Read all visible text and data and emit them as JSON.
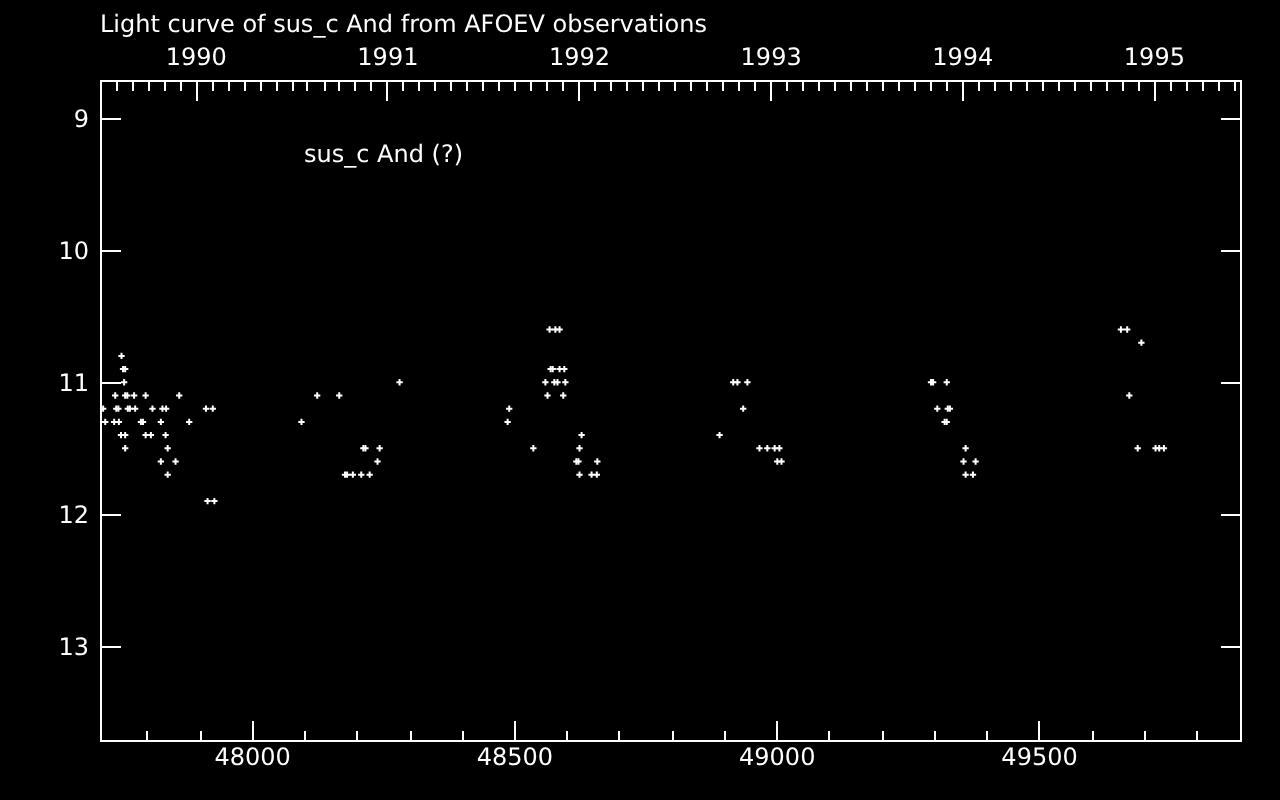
{
  "chart_data": {
    "type": "scatter",
    "title": "Light curve of sus_c And from AFOEV observations",
    "annotations": [
      "sus_c And (?)"
    ],
    "x": [
      47752,
      47755,
      47759,
      47757,
      47740,
      47759,
      47763,
      47776,
      47798,
      47862,
      47717,
      47742,
      47746,
      47764,
      47768,
      47778,
      47811,
      47830,
      47837,
      47913,
      47926,
      47721,
      47738,
      47747,
      47789,
      47793,
      47827,
      47881,
      47751,
      47759,
      47798,
      47808,
      47836,
      47759,
      47840,
      47827,
      47855,
      47840,
      47916,
      47929,
      48095,
      48125,
      48167,
      48282,
      48213,
      48217,
      48244,
      48240,
      48178,
      48182,
      48193,
      48209,
      48225,
      48568,
      48579,
      48587,
      48570,
      48574,
      48587,
      48596,
      48560,
      48577,
      48583,
      48598,
      48564,
      48594,
      48491,
      48488,
      48629,
      48537,
      48625,
      48619,
      48623,
      48659,
      48625,
      48648,
      48658,
      48918,
      48926,
      48945,
      48937,
      48892,
      48968,
      48983,
      48997,
      49006,
      49002,
      49010,
      49295,
      49299,
      49325,
      49307,
      49327,
      49331,
      49321,
      49325,
      49361,
      49357,
      49380,
      49361,
      49375,
      49657,
      49669,
      49696,
      49673,
      49689,
      49723,
      49730,
      49739
    ],
    "series": [
      {
        "color": "#ffffff",
        "values": [
          10.8,
          10.9,
          10.9,
          11.0,
          11.1,
          11.1,
          11.1,
          11.1,
          11.1,
          11.1,
          11.2,
          11.2,
          11.2,
          11.2,
          11.2,
          11.2,
          11.2,
          11.2,
          11.2,
          11.2,
          11.2,
          11.3,
          11.3,
          11.3,
          11.3,
          11.3,
          11.3,
          11.3,
          11.4,
          11.4,
          11.4,
          11.4,
          11.4,
          11.5,
          11.5,
          11.6,
          11.6,
          11.7,
          11.9,
          11.9,
          11.3,
          11.1,
          11.1,
          11.0,
          11.5,
          11.5,
          11.5,
          11.6,
          11.7,
          11.7,
          11.7,
          11.7,
          11.7,
          10.6,
          10.6,
          10.6,
          10.9,
          10.9,
          10.9,
          10.9,
          11.0,
          11.0,
          11.0,
          11.0,
          11.1,
          11.1,
          11.2,
          11.3,
          11.4,
          11.5,
          11.5,
          11.6,
          11.6,
          11.6,
          11.7,
          11.7,
          11.7,
          11.0,
          11.0,
          11.0,
          11.2,
          11.4,
          11.5,
          11.5,
          11.5,
          11.5,
          11.6,
          11.6,
          11.0,
          11.0,
          11.0,
          11.2,
          11.2,
          11.2,
          11.3,
          11.3,
          11.5,
          11.6,
          11.6,
          11.7,
          11.7,
          10.6,
          10.6,
          10.7,
          11.1,
          11.5,
          11.5,
          11.5,
          11.5
        ]
      }
    ],
    "marker": "cross",
    "xlim": [
      47711,
      49884
    ],
    "ylim": [
      13.71,
      8.71
    ],
    "xticks": [
      {
        "value": 47800,
        "label": null
      },
      {
        "value": 47900,
        "label": null
      },
      48000,
      {
        "value": 48100,
        "label": null
      },
      {
        "value": 48200,
        "label": null
      },
      {
        "value": 48300,
        "label": null
      },
      {
        "value": 48400,
        "label": null
      },
      48500,
      {
        "value": 48600,
        "label": null
      },
      {
        "value": 48700,
        "label": null
      },
      {
        "value": 48800,
        "label": null
      },
      {
        "value": 48900,
        "label": null
      },
      49000,
      {
        "value": 49100,
        "label": null
      },
      {
        "value": 49200,
        "label": null
      },
      {
        "value": 49300,
        "label": null
      },
      {
        "value": 49400,
        "label": null
      },
      49500,
      {
        "value": 49600,
        "label": null
      },
      {
        "value": 49700,
        "label": null
      },
      {
        "value": 49800,
        "label": null
      }
    ],
    "yticks": [
      9,
      10,
      11,
      12,
      13
    ],
    "x2lim": [
      1989.503,
      1995.452
    ],
    "x2ticks": [
      {
        "value": 1989.583,
        "label": null
      },
      {
        "value": 1989.667,
        "label": null
      },
      {
        "value": 1989.75,
        "label": null
      },
      {
        "value": 1989.833,
        "label": null
      },
      {
        "value": 1989.917,
        "label": null
      },
      1990,
      {
        "value": 1990.083,
        "label": null
      },
      {
        "value": 1990.167,
        "label": null
      },
      {
        "value": 1990.25,
        "label": null
      },
      {
        "value": 1990.333,
        "label": null
      },
      {
        "value": 1990.417,
        "label": null
      },
      {
        "value": 1990.5,
        "label": null
      },
      {
        "value": 1990.583,
        "label": null
      },
      {
        "value": 1990.667,
        "label": null
      },
      {
        "value": 1990.75,
        "label": null
      },
      {
        "value": 1990.833,
        "label": null
      },
      {
        "value": 1990.917,
        "label": null
      },
      1991,
      {
        "value": 1991.083,
        "label": null
      },
      {
        "value": 1991.167,
        "label": null
      },
      {
        "value": 1991.25,
        "label": null
      },
      {
        "value": 1991.333,
        "label": null
      },
      {
        "value": 1991.417,
        "label": null
      },
      {
        "value": 1991.5,
        "label": null
      },
      {
        "value": 1991.583,
        "label": null
      },
      {
        "value": 1991.667,
        "label": null
      },
      {
        "value": 1991.75,
        "label": null
      },
      {
        "value": 1991.833,
        "label": null
      },
      {
        "value": 1991.917,
        "label": null
      },
      1992,
      {
        "value": 1992.083,
        "label": null
      },
      {
        "value": 1992.167,
        "label": null
      },
      {
        "value": 1992.25,
        "label": null
      },
      {
        "value": 1992.333,
        "label": null
      },
      {
        "value": 1992.417,
        "label": null
      },
      {
        "value": 1992.5,
        "label": null
      },
      {
        "value": 1992.583,
        "label": null
      },
      {
        "value": 1992.667,
        "label": null
      },
      {
        "value": 1992.75,
        "label": null
      },
      {
        "value": 1992.833,
        "label": null
      },
      {
        "value": 1992.917,
        "label": null
      },
      1993,
      {
        "value": 1993.083,
        "label": null
      },
      {
        "value": 1993.167,
        "label": null
      },
      {
        "value": 1993.25,
        "label": null
      },
      {
        "value": 1993.333,
        "label": null
      },
      {
        "value": 1993.417,
        "label": null
      },
      {
        "value": 1993.5,
        "label": null
      },
      {
        "value": 1993.583,
        "label": null
      },
      {
        "value": 1993.667,
        "label": null
      },
      {
        "value": 1993.75,
        "label": null
      },
      {
        "value": 1993.833,
        "label": null
      },
      {
        "value": 1993.917,
        "label": null
      },
      1994,
      {
        "value": 1994.083,
        "label": null
      },
      {
        "value": 1994.167,
        "label": null
      },
      {
        "value": 1994.25,
        "label": null
      },
      {
        "value": 1994.333,
        "label": null
      },
      {
        "value": 1994.417,
        "label": null
      },
      {
        "value": 1994.5,
        "label": null
      },
      {
        "value": 1994.583,
        "label": null
      },
      {
        "value": 1994.667,
        "label": null
      },
      {
        "value": 1994.75,
        "label": null
      },
      {
        "value": 1994.833,
        "label": null
      },
      {
        "value": 1994.917,
        "label": null
      },
      1995,
      {
        "value": 1995.083,
        "label": null
      },
      {
        "value": 1995.167,
        "label": null
      },
      {
        "value": 1995.25,
        "label": null
      },
      {
        "value": 1995.333,
        "label": null
      },
      {
        "value": 1995.417,
        "label": null
      }
    ]
  }
}
